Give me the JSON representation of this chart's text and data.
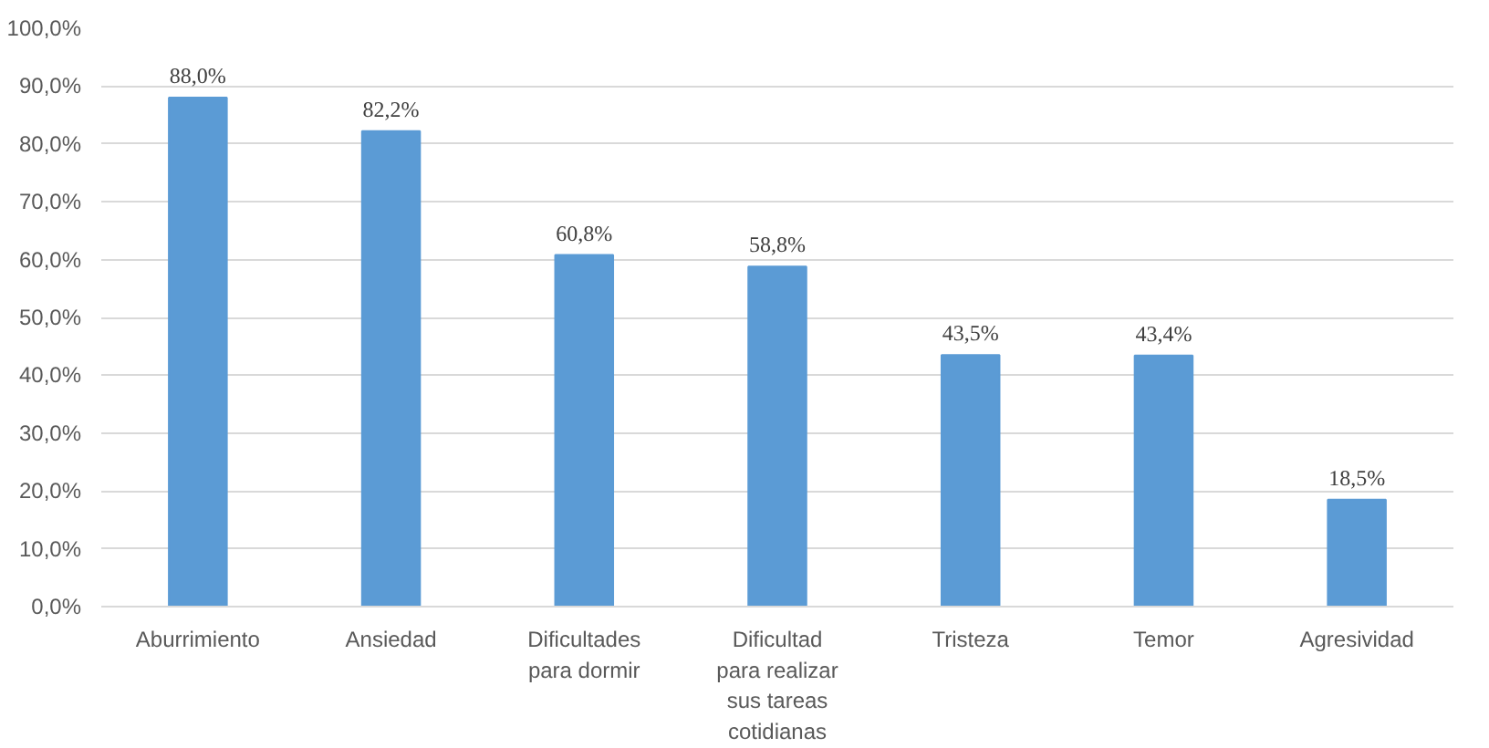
{
  "chart_data": {
    "type": "bar",
    "categories": [
      "Aburrimiento",
      "Ansiedad",
      "Dificultades\npara dormir",
      "Dificultad\npara realizar\nsus tareas\ncotidianas",
      "Tristeza",
      "Temor",
      "Agresividad"
    ],
    "values": [
      88.0,
      82.2,
      60.8,
      58.8,
      43.5,
      43.4,
      18.5
    ],
    "value_labels": [
      "88,0%",
      "82,2%",
      "60,8%",
      "58,8%",
      "43,5%",
      "43,4%",
      "18,5%"
    ],
    "color": "#5b9bd5",
    "ylim": [
      0,
      100
    ],
    "yticks": [
      {
        "value": 0,
        "label": "0,0%"
      },
      {
        "value": 10,
        "label": "10,0%"
      },
      {
        "value": 20,
        "label": "20,0%"
      },
      {
        "value": 30,
        "label": "30,0%"
      },
      {
        "value": 40,
        "label": "40,0%"
      },
      {
        "value": 50,
        "label": "50,0%"
      },
      {
        "value": 60,
        "label": "60,0%"
      },
      {
        "value": 70,
        "label": "70,0%"
      },
      {
        "value": 80,
        "label": "80,0%"
      },
      {
        "value": 90,
        "label": "90,0%"
      },
      {
        "value": 100,
        "label": "100,0%"
      }
    ],
    "grid": "y"
  }
}
